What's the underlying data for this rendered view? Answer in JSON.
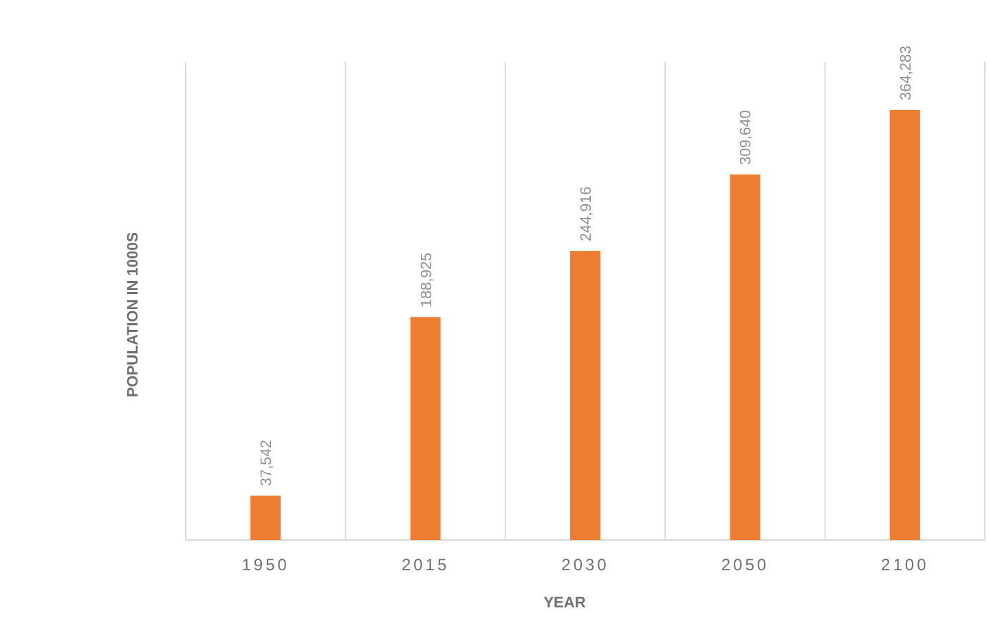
{
  "chart_data": {
    "type": "bar",
    "xlabel": "YEAR",
    "ylabel": "POPULATION IN 1000S",
    "categories": [
      "1950",
      "2015",
      "2030",
      "2050",
      "2100"
    ],
    "values": [
      37542,
      188925,
      244916,
      309640,
      364283
    ],
    "value_labels": [
      "37,542",
      "188,925",
      "244,916",
      "309,640",
      "364,283"
    ],
    "color": "#ed7d31",
    "grid": "x",
    "tick_labels": "x"
  }
}
